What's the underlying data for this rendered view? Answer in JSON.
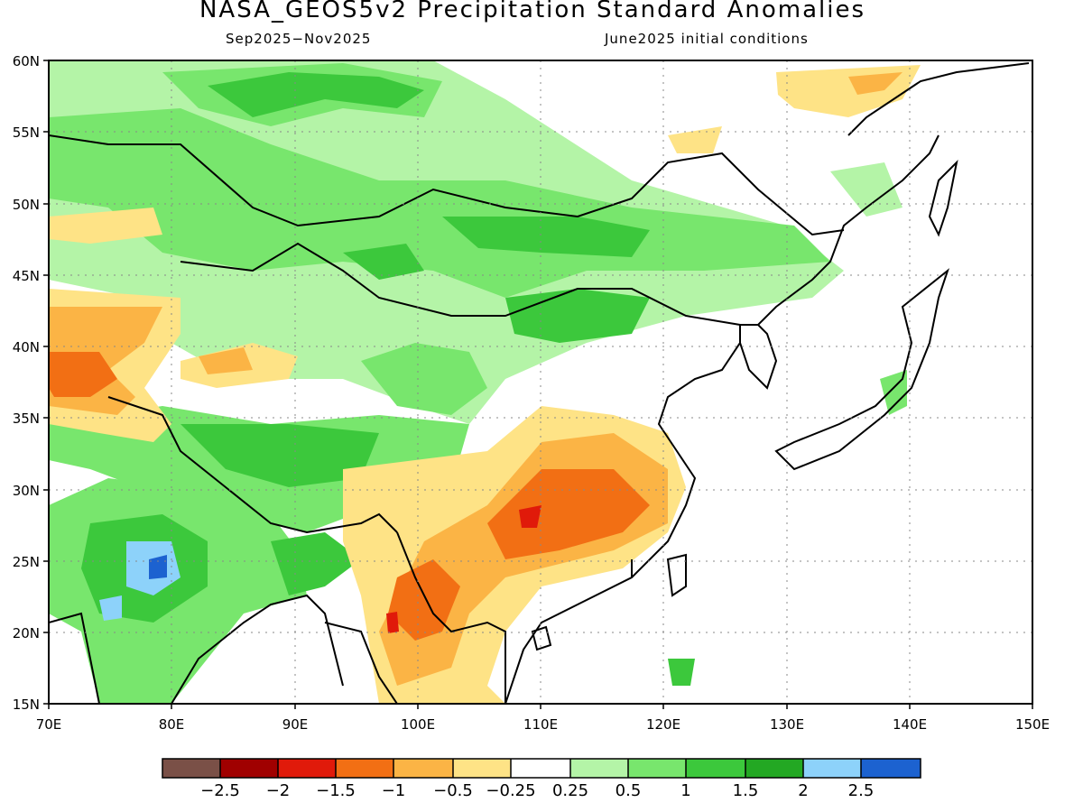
{
  "title": "NASA_GEOS5v2 Precipitation Standard Anomalies",
  "subtitle_left": "Sep2025−Nov2025",
  "subtitle_right": "June2025 initial conditions",
  "lon_labels": [
    "70E",
    "80E",
    "90E",
    "100E",
    "110E",
    "120E",
    "130E",
    "140E",
    "150E"
  ],
  "lat_labels": [
    "60N",
    "55N",
    "50N",
    "45N",
    "40N",
    "35N",
    "30N",
    "25N",
    "20N",
    "15N"
  ],
  "colorbar": {
    "colors": [
      "#7a5047",
      "#a00000",
      "#e01a0a",
      "#f26f14",
      "#fbb445",
      "#fee386",
      "#ffffff",
      "#b4f4a7",
      "#78e66d",
      "#3cc83c",
      "#23a823",
      "#8dd2fa",
      "#1c62d0"
    ],
    "labels": [
      "−2.5",
      "−2",
      "−1.5",
      "−1",
      "−0.5",
      "−0.25",
      "0.25",
      "0.5",
      "1",
      "1.5",
      "2",
      "2.5"
    ]
  }
}
